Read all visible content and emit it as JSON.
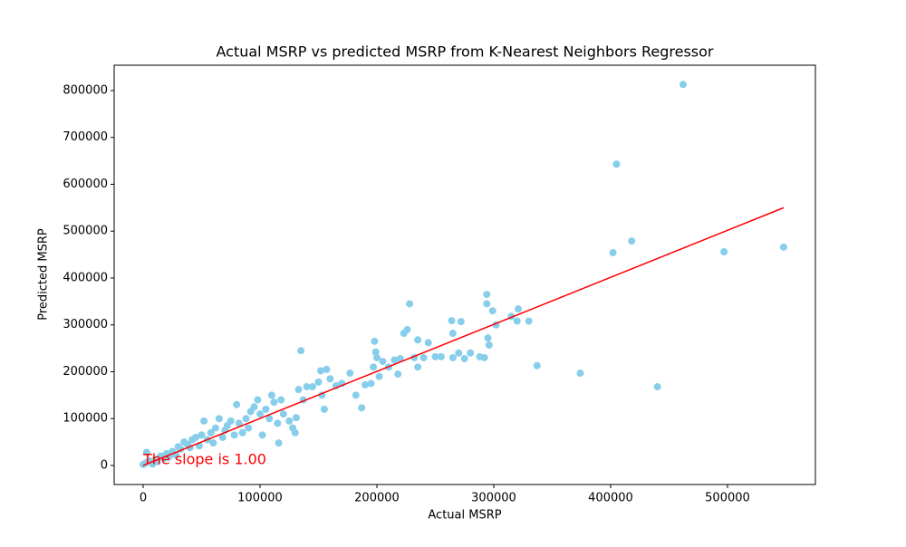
{
  "chart_data": {
    "type": "scatter",
    "title": "Actual MSRP vs predicted MSRP from K-Nearest Neighbors Regressor",
    "x_label": "Actual MSRP",
    "y_label": "Predicted MSRP",
    "annotation": "The slope is 1.00",
    "xlim": [
      -24800,
      575200
    ],
    "ylim": [
      -40600,
      854100
    ],
    "xticks": [
      0,
      100000,
      200000,
      300000,
      400000,
      500000
    ],
    "yticks": [
      0,
      100000,
      200000,
      300000,
      400000,
      500000,
      600000,
      700000,
      800000
    ],
    "grid": false,
    "series": [
      {
        "color": "#87ceeb",
        "x": [
          0,
          2000,
          3000,
          5000,
          8000,
          10000,
          12000,
          15000,
          18000,
          20000,
          22000,
          25000,
          28000,
          30000,
          32000,
          35000,
          38000,
          40000,
          42000,
          45000,
          48000,
          50000,
          52000,
          55000,
          58000,
          60000,
          62000,
          65000,
          68000,
          70000,
          72000,
          75000,
          78000,
          80000,
          82000,
          85000,
          88000,
          90000,
          92000,
          95000,
          98000,
          100000,
          102000,
          105000,
          108000,
          110000,
          112000,
          115000,
          116000,
          118000,
          120000,
          125000,
          128000,
          130000,
          131000,
          133000,
          135000,
          137000,
          140000,
          145000,
          150000,
          152000,
          153000,
          155000,
          157000,
          160000,
          165000,
          170000,
          177000,
          182000,
          187000,
          190000,
          195000,
          197000,
          198000,
          199000,
          200000,
          202000,
          205000,
          210000,
          215000,
          218000,
          220000,
          223000,
          226000,
          228000,
          232000,
          235000,
          235000,
          240000,
          244000,
          250000,
          255000,
          264000,
          265000,
          265000,
          270000,
          272000,
          275000,
          280000,
          288000,
          292000,
          294000,
          294000,
          295000,
          296000,
          299000,
          302000,
          315000,
          320000,
          321000,
          330000,
          337000,
          374000,
          402000,
          405000,
          418000,
          440000,
          462000,
          497000,
          548000
        ],
        "values": [
          2000,
          5000,
          28000,
          10000,
          3000,
          12000,
          8000,
          20000,
          15000,
          25000,
          18000,
          30000,
          22000,
          40000,
          35000,
          50000,
          45000,
          38000,
          55000,
          60000,
          42000,
          65000,
          95000,
          55000,
          70000,
          48000,
          80000,
          100000,
          60000,
          75000,
          85000,
          95000,
          65000,
          130000,
          90000,
          70000,
          100000,
          80000,
          115000,
          125000,
          140000,
          110000,
          65000,
          120000,
          100000,
          150000,
          135000,
          90000,
          48000,
          140000,
          110000,
          95000,
          80000,
          70000,
          102000,
          162000,
          245000,
          140000,
          168000,
          168000,
          178000,
          202000,
          150000,
          120000,
          205000,
          185000,
          170000,
          175000,
          197000,
          150000,
          123000,
          172000,
          175000,
          210000,
          265000,
          242000,
          230000,
          190000,
          222000,
          210000,
          225000,
          195000,
          228000,
          282000,
          290000,
          345000,
          230000,
          210000,
          268000,
          230000,
          262000,
          232000,
          232000,
          309000,
          282000,
          230000,
          240000,
          307000,
          228000,
          240000,
          232000,
          230000,
          365000,
          345000,
          272000,
          257000,
          330000,
          300000,
          318000,
          308000,
          334000,
          308000,
          213000,
          197000,
          454000,
          643000,
          479000,
          168000,
          813000,
          456000,
          466000
        ]
      }
    ],
    "fit_line": {
      "color": "#ff0000",
      "x": [
        0,
        548000
      ],
      "values": [
        0,
        550000
      ]
    },
    "annotation_color": "#ff0000"
  }
}
